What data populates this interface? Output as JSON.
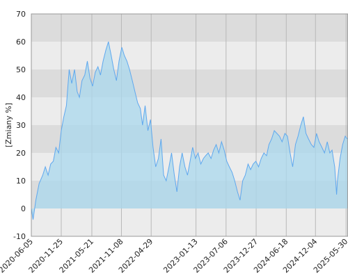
{
  "chart_data": {
    "type": "area",
    "y_label": "[Zmiany %]",
    "x": [
      "2020-06-05",
      "2020-06-15",
      "2020-07-01",
      "2020-07-20",
      "2020-08-10",
      "2020-08-25",
      "2020-09-10",
      "2020-09-25",
      "2020-10-10",
      "2020-10-25",
      "2020-11-10",
      "2020-11-25",
      "2020-12-10",
      "2020-12-25",
      "2021-01-10",
      "2021-01-25",
      "2021-02-10",
      "2021-02-25",
      "2021-03-10",
      "2021-03-25",
      "2021-04-10",
      "2021-04-25",
      "2021-05-10",
      "2021-05-25",
      "2021-06-10",
      "2021-06-25",
      "2021-07-10",
      "2021-07-25",
      "2021-08-10",
      "2021-08-25",
      "2021-09-10",
      "2021-09-25",
      "2021-10-10",
      "2021-10-25",
      "2021-11-10",
      "2021-11-25",
      "2021-12-10",
      "2021-12-25",
      "2022-01-10",
      "2022-01-25",
      "2022-02-10",
      "2022-02-25",
      "2022-03-10",
      "2022-03-25",
      "2022-04-10",
      "2022-04-25",
      "2022-05-10",
      "2022-05-25",
      "2022-06-10",
      "2022-06-25",
      "2022-07-10",
      "2022-07-25",
      "2022-08-10",
      "2022-08-25",
      "2022-09-10",
      "2022-09-25",
      "2022-10-10",
      "2022-10-25",
      "2022-11-10",
      "2022-11-25",
      "2022-12-10",
      "2022-12-25",
      "2023-01-10",
      "2023-01-25",
      "2023-02-10",
      "2023-02-25",
      "2023-03-10",
      "2023-03-25",
      "2023-04-10",
      "2023-04-25",
      "2023-05-10",
      "2023-05-25",
      "2023-06-10",
      "2023-06-25",
      "2023-07-10",
      "2023-07-25",
      "2023-08-10",
      "2023-08-25",
      "2023-09-10",
      "2023-09-25",
      "2023-10-10",
      "2023-10-25",
      "2023-11-10",
      "2023-11-25",
      "2023-12-10",
      "2023-12-25",
      "2024-01-10",
      "2024-01-25",
      "2024-02-10",
      "2024-02-25",
      "2024-03-10",
      "2024-03-25",
      "2024-04-10",
      "2024-04-25",
      "2024-05-10",
      "2024-05-25",
      "2024-06-10",
      "2024-06-25",
      "2024-07-10",
      "2024-07-25",
      "2024-08-10",
      "2024-08-25",
      "2024-09-10",
      "2024-09-25",
      "2024-10-10",
      "2024-10-25",
      "2024-11-10",
      "2024-11-25",
      "2024-12-10",
      "2024-12-25",
      "2025-01-10",
      "2025-01-25",
      "2025-02-10",
      "2025-02-25",
      "2025-03-10",
      "2025-03-25",
      "2025-04-05",
      "2025-04-10",
      "2025-04-25",
      "2025-05-10",
      "2025-05-25",
      "2025-06-06"
    ],
    "values": [
      0,
      -4,
      3,
      9,
      12,
      15,
      12,
      16,
      17,
      22,
      20,
      28,
      33,
      37,
      50,
      45,
      50,
      42,
      40,
      46,
      48,
      53,
      47,
      44,
      49,
      51,
      48,
      53,
      57,
      60,
      55,
      50,
      46,
      53,
      58,
      55,
      53,
      50,
      46,
      42,
      38,
      36,
      30,
      37,
      28,
      32,
      22,
      15,
      18,
      25,
      12,
      10,
      15,
      20,
      12,
      6,
      15,
      20,
      15,
      12,
      17,
      22,
      18,
      20,
      16,
      18,
      19,
      20,
      18,
      21,
      23,
      20,
      24,
      21,
      17,
      15,
      13,
      10,
      6,
      3,
      10,
      12,
      16,
      14,
      16,
      17,
      15,
      18,
      20,
      19,
      23,
      25,
      28,
      27,
      26,
      24,
      27,
      26,
      20,
      15,
      23,
      26,
      30,
      33,
      27,
      25,
      23,
      22,
      27,
      24,
      22,
      20,
      24,
      20,
      21,
      15,
      5,
      10,
      18,
      23,
      26,
      25
    ],
    "color": "#5fa8ee",
    "fill": "#a9d8ee",
    "xlim": [
      "2020-06-05",
      "2025-06-10"
    ],
    "xticks": [
      "2020-06-05",
      "2020-11-25",
      "2021-05-21",
      "2021-11-08",
      "2022-04-29",
      "2023-01-13",
      "2023-07-06",
      "2023-12-27",
      "2024-06-18",
      "2024-12-04",
      "2025-05-30"
    ],
    "ylim": [
      -10,
      70
    ],
    "yticks": [
      -10,
      0,
      10,
      20,
      30,
      40,
      50,
      60,
      70
    ],
    "grid": true
  }
}
